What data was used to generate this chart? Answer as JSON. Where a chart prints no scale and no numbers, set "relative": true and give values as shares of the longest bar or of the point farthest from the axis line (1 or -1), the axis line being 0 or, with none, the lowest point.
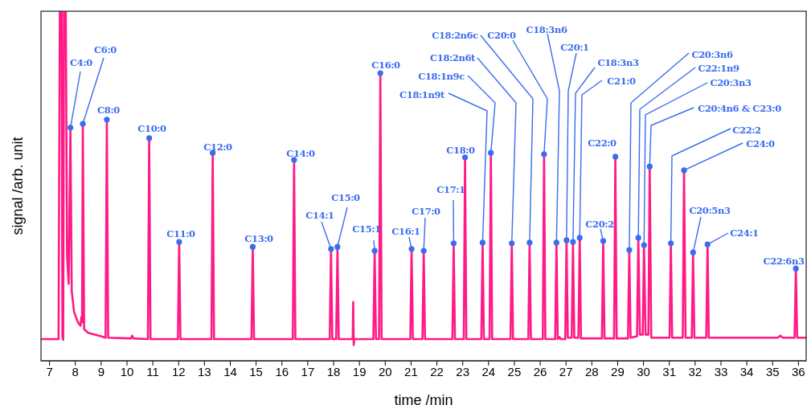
{
  "chart_data": {
    "type": "line",
    "relative": true,
    "xlabel": "time /min",
    "ylabel": "signal /arb. unit",
    "xlim": [
      6.67,
      36.3
    ],
    "xticks": [
      7,
      8,
      9,
      10,
      11,
      12,
      13,
      14,
      15,
      16,
      17,
      18,
      19,
      20,
      21,
      22,
      23,
      24,
      25,
      26,
      27,
      28,
      29,
      30,
      31,
      32,
      33,
      34,
      35,
      36
    ],
    "grid": false,
    "legend": false,
    "marker": "none",
    "line_style": "solid",
    "series": [
      {
        "color": "#ff1a85",
        "x": [
          6.67,
          7.35,
          7.4,
          7.47,
          7.5,
          7.53,
          7.56,
          7.63,
          7.68,
          7.74,
          7.81,
          7.86,
          7.95,
          8.1,
          8.2,
          8.23,
          8.26,
          8.29,
          8.34,
          8.5,
          9.0,
          9.17,
          9.22,
          9.27,
          10.15,
          10.2,
          10.25,
          10.81,
          10.86,
          10.91,
          11.97,
          12.02,
          12.07,
          13.27,
          13.32,
          13.37,
          14.82,
          14.87,
          14.92,
          16.42,
          16.47,
          16.52,
          17.85,
          17.9,
          17.95,
          18.1,
          18.15,
          18.2,
          18.74,
          18.76,
          18.78,
          18.8,
          19.54,
          19.59,
          19.64,
          19.76,
          19.81,
          19.86,
          20.97,
          21.02,
          21.07,
          21.44,
          21.49,
          21.54,
          22.6,
          22.65,
          22.7,
          23.04,
          23.09,
          23.14,
          23.72,
          23.77,
          23.82,
          24.04,
          24.09,
          24.14,
          24.85,
          24.9,
          24.95,
          25.54,
          25.59,
          25.64,
          26.1,
          26.15,
          26.2,
          26.58,
          26.63,
          26.68,
          26.75,
          26.8,
          26.97,
          27.02,
          27.07,
          27.22,
          27.27,
          27.32,
          27.48,
          27.53,
          27.58,
          28.39,
          28.44,
          28.49,
          28.86,
          28.91,
          28.96,
          29.4,
          29.45,
          29.5,
          29.75,
          29.8,
          29.86,
          29.97,
          30.02,
          30.08,
          30.19,
          30.24,
          30.3,
          31.01,
          31.06,
          31.11,
          31.52,
          31.57,
          31.63,
          31.87,
          31.92,
          31.97,
          32.43,
          32.48,
          32.53,
          35.2,
          35.3,
          35.4,
          35.85,
          35.9,
          35.95,
          36.3
        ],
        "values": [
          0.062,
          0.062,
          1,
          1,
          0.07,
          0.06,
          1,
          1,
          0.3,
          0.22,
          0.667,
          0.2,
          0.14,
          0.11,
          0.1,
          0.125,
          0.11,
          0.678,
          0.09,
          0.08,
          0.07,
          0.066,
          0.69,
          0.066,
          0.064,
          0.072,
          0.064,
          0.062,
          0.637,
          0.062,
          0.062,
          0.34,
          0.062,
          0.062,
          0.595,
          0.062,
          0.062,
          0.326,
          0.062,
          0.062,
          0.575,
          0.062,
          0.062,
          0.32,
          0.062,
          0.062,
          0.326,
          0.062,
          0.062,
          0.168,
          0.045,
          0.062,
          0.062,
          0.315,
          0.062,
          0.062,
          0.823,
          0.062,
          0.062,
          0.32,
          0.062,
          0.062,
          0.315,
          0.062,
          0.062,
          0.336,
          0.062,
          0.062,
          0.582,
          0.062,
          0.062,
          0.338,
          0.062,
          0.062,
          0.595,
          0.062,
          0.062,
          0.336,
          0.062,
          0.062,
          0.338,
          0.062,
          0.062,
          0.591,
          0.062,
          0.062,
          0.338,
          0.062,
          0.068,
          0.062,
          0.062,
          0.345,
          0.066,
          0.066,
          0.34,
          0.066,
          0.066,
          0.352,
          0.064,
          0.064,
          0.343,
          0.064,
          0.064,
          0.584,
          0.064,
          0.064,
          0.317,
          0.066,
          0.07,
          0.352,
          0.075,
          0.075,
          0.331,
          0.075,
          0.075,
          0.556,
          0.066,
          0.066,
          0.336,
          0.066,
          0.066,
          0.545,
          0.066,
          0.066,
          0.31,
          0.066,
          0.066,
          0.333,
          0.066,
          0.066,
          0.072,
          0.066,
          0.066,
          0.264,
          0.066,
          0.066
        ]
      }
    ],
    "annotations": [
      {
        "text": "C4:0",
        "x": 7.81,
        "y": 0.667
      },
      {
        "text": "C6:0",
        "x": 8.29,
        "y": 0.678
      },
      {
        "text": "C8:0",
        "x": 9.22,
        "y": 0.69
      },
      {
        "text": "C10:0",
        "x": 10.86,
        "y": 0.637
      },
      {
        "text": "C11:0",
        "x": 12.02,
        "y": 0.34
      },
      {
        "text": "C12:0",
        "x": 13.32,
        "y": 0.595
      },
      {
        "text": "C13:0",
        "x": 14.87,
        "y": 0.326
      },
      {
        "text": "C14:0",
        "x": 16.47,
        "y": 0.575
      },
      {
        "text": "C14:1",
        "x": 17.9,
        "y": 0.32
      },
      {
        "text": "C15:0",
        "x": 18.15,
        "y": 0.326
      },
      {
        "text": "C15:1",
        "x": 19.59,
        "y": 0.315
      },
      {
        "text": "C16:0",
        "x": 19.81,
        "y": 0.823
      },
      {
        "text": "C16:1",
        "x": 21.02,
        "y": 0.32
      },
      {
        "text": "C17:0",
        "x": 21.49,
        "y": 0.315
      },
      {
        "text": "C17:1",
        "x": 22.65,
        "y": 0.336
      },
      {
        "text": "C18:0",
        "x": 23.09,
        "y": 0.582
      },
      {
        "text": "C18:1n9t",
        "x": 23.77,
        "y": 0.338
      },
      {
        "text": "C18:1n9c",
        "x": 24.09,
        "y": 0.595
      },
      {
        "text": "C18:2n6t",
        "x": 24.9,
        "y": 0.336
      },
      {
        "text": "C18:2n6c",
        "x": 25.59,
        "y": 0.338
      },
      {
        "text": "C20:0",
        "x": 26.15,
        "y": 0.591
      },
      {
        "text": "C18:3n6",
        "x": 26.63,
        "y": 0.338
      },
      {
        "text": "C20:1",
        "x": 27.02,
        "y": 0.345
      },
      {
        "text": "C18:3n3",
        "x": 27.27,
        "y": 0.34
      },
      {
        "text": "C21:0",
        "x": 27.53,
        "y": 0.352
      },
      {
        "text": "C20:2",
        "x": 28.44,
        "y": 0.343
      },
      {
        "text": "C22:0",
        "x": 28.91,
        "y": 0.584
      },
      {
        "text": "C20:3n6",
        "x": 29.45,
        "y": 0.317
      },
      {
        "text": "C22:1n9",
        "x": 29.8,
        "y": 0.352
      },
      {
        "text": "C20:3n3",
        "x": 30.02,
        "y": 0.331
      },
      {
        "text": "C20:4n6 & C23:0",
        "x": 30.24,
        "y": 0.556
      },
      {
        "text": "C22:2",
        "x": 31.06,
        "y": 0.336
      },
      {
        "text": "C24:0",
        "x": 31.57,
        "y": 0.545
      },
      {
        "text": "C20:5n3",
        "x": 31.92,
        "y": 0.31
      },
      {
        "text": "C24:1",
        "x": 32.48,
        "y": 0.333
      },
      {
        "text": "C22:6n3",
        "x": 35.9,
        "y": 0.264
      }
    ]
  }
}
